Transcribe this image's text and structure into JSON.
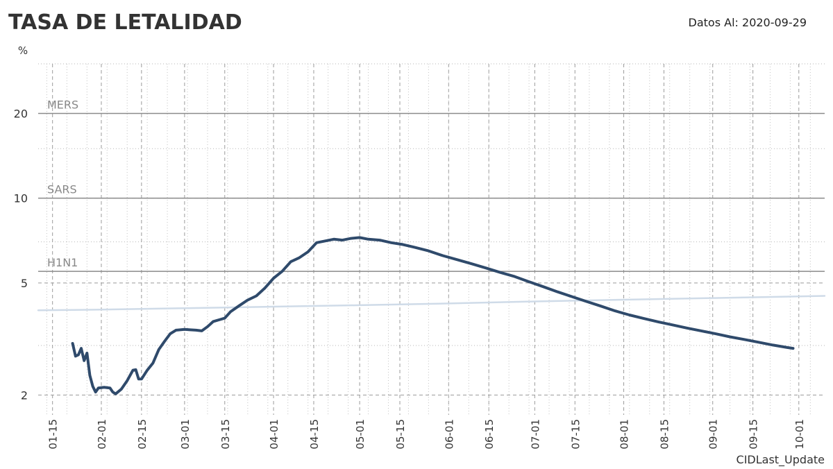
{
  "title": "TASA DE LETALIDAD",
  "update_label": "Datos Al: 2020-09-29",
  "y_unit": "%",
  "footer": "CIDLast_Update",
  "colors": {
    "main_series": "#2f4a6b",
    "global_series": "#cfdbe8",
    "reference_line": "#8a8a8a"
  },
  "chart_data": {
    "type": "line",
    "y_scale": "log",
    "ylim": [
      1.8,
      30
    ],
    "yticks": [
      2,
      5,
      10,
      20
    ],
    "x_range": [
      "2020-01-10",
      "2020-10-10"
    ],
    "xtick_labels": [
      "01-15",
      "02-01",
      "02-15",
      "03-01",
      "03-15",
      "04-01",
      "04-15",
      "05-01",
      "05-15",
      "06-01",
      "06-15",
      "07-01",
      "07-15",
      "08-01",
      "08-15",
      "09-01",
      "09-15",
      "10-01"
    ],
    "xtick_dates": [
      "2020-01-15",
      "2020-02-01",
      "2020-02-15",
      "2020-03-01",
      "2020-03-15",
      "2020-04-01",
      "2020-04-15",
      "2020-05-01",
      "2020-05-15",
      "2020-06-01",
      "2020-06-15",
      "2020-07-01",
      "2020-07-15",
      "2020-08-01",
      "2020-08-15",
      "2020-09-01",
      "2020-09-15",
      "2020-10-01"
    ],
    "grid": true,
    "reference_lines": [
      {
        "label": "MERS",
        "value": 20
      },
      {
        "label": "SARS",
        "value": 10
      },
      {
        "label": "H1N1",
        "value": 5.5
      }
    ],
    "series": [
      {
        "color": "#2f4a6b",
        "points": [
          [
            "2020-01-22",
            3.05
          ],
          [
            "2020-01-23",
            2.75
          ],
          [
            "2020-01-24",
            2.78
          ],
          [
            "2020-01-25",
            2.93
          ],
          [
            "2020-01-26",
            2.65
          ],
          [
            "2020-01-27",
            2.82
          ],
          [
            "2020-01-28",
            2.35
          ],
          [
            "2020-01-29",
            2.15
          ],
          [
            "2020-01-30",
            2.05
          ],
          [
            "2020-01-31",
            2.12
          ],
          [
            "2020-02-02",
            2.13
          ],
          [
            "2020-02-04",
            2.12
          ],
          [
            "2020-02-05",
            2.05
          ],
          [
            "2020-02-06",
            2.02
          ],
          [
            "2020-02-08",
            2.1
          ],
          [
            "2020-02-10",
            2.25
          ],
          [
            "2020-02-12",
            2.45
          ],
          [
            "2020-02-13",
            2.46
          ],
          [
            "2020-02-14",
            2.28
          ],
          [
            "2020-02-15",
            2.28
          ],
          [
            "2020-02-17",
            2.45
          ],
          [
            "2020-02-19",
            2.6
          ],
          [
            "2020-02-21",
            2.9
          ],
          [
            "2020-02-23",
            3.1
          ],
          [
            "2020-02-25",
            3.3
          ],
          [
            "2020-02-27",
            3.4
          ],
          [
            "2020-03-01",
            3.42
          ],
          [
            "2020-03-03",
            3.41
          ],
          [
            "2020-03-05",
            3.4
          ],
          [
            "2020-03-07",
            3.38
          ],
          [
            "2020-03-09",
            3.5
          ],
          [
            "2020-03-11",
            3.65
          ],
          [
            "2020-03-13",
            3.7
          ],
          [
            "2020-03-15",
            3.75
          ],
          [
            "2020-03-17",
            3.95
          ],
          [
            "2020-03-20",
            4.15
          ],
          [
            "2020-03-23",
            4.35
          ],
          [
            "2020-03-26",
            4.5
          ],
          [
            "2020-03-29",
            4.8
          ],
          [
            "2020-04-01",
            5.2
          ],
          [
            "2020-04-04",
            5.5
          ],
          [
            "2020-04-07",
            5.95
          ],
          [
            "2020-04-10",
            6.15
          ],
          [
            "2020-04-13",
            6.45
          ],
          [
            "2020-04-16",
            6.95
          ],
          [
            "2020-04-19",
            7.05
          ],
          [
            "2020-04-22",
            7.15
          ],
          [
            "2020-04-25",
            7.1
          ],
          [
            "2020-04-28",
            7.2
          ],
          [
            "2020-05-01",
            7.25
          ],
          [
            "2020-05-04",
            7.15
          ],
          [
            "2020-05-08",
            7.1
          ],
          [
            "2020-05-12",
            6.95
          ],
          [
            "2020-05-16",
            6.85
          ],
          [
            "2020-05-20",
            6.7
          ],
          [
            "2020-05-25",
            6.5
          ],
          [
            "2020-05-30",
            6.25
          ],
          [
            "2020-06-04",
            6.05
          ],
          [
            "2020-06-09",
            5.85
          ],
          [
            "2020-06-14",
            5.65
          ],
          [
            "2020-06-19",
            5.45
          ],
          [
            "2020-06-24",
            5.27
          ],
          [
            "2020-06-29",
            5.05
          ],
          [
            "2020-07-04",
            4.85
          ],
          [
            "2020-07-09",
            4.65
          ],
          [
            "2020-07-14",
            4.47
          ],
          [
            "2020-07-19",
            4.3
          ],
          [
            "2020-07-24",
            4.14
          ],
          [
            "2020-07-29",
            3.98
          ],
          [
            "2020-08-03",
            3.85
          ],
          [
            "2020-08-08",
            3.74
          ],
          [
            "2020-08-13",
            3.64
          ],
          [
            "2020-08-18",
            3.55
          ],
          [
            "2020-08-23",
            3.46
          ],
          [
            "2020-08-28",
            3.38
          ],
          [
            "2020-09-02",
            3.3
          ],
          [
            "2020-09-07",
            3.22
          ],
          [
            "2020-09-12",
            3.15
          ],
          [
            "2020-09-17",
            3.08
          ],
          [
            "2020-09-22",
            3.01
          ],
          [
            "2020-09-27",
            2.95
          ],
          [
            "2020-09-29",
            2.93
          ]
        ]
      },
      {
        "color": "#cfdbe8",
        "points": [
          [
            "2020-01-10",
            4.0
          ],
          [
            "2020-02-01",
            4.02
          ],
          [
            "2020-03-01",
            4.07
          ],
          [
            "2020-04-01",
            4.12
          ],
          [
            "2020-05-01",
            4.17
          ],
          [
            "2020-06-01",
            4.23
          ],
          [
            "2020-07-01",
            4.3
          ],
          [
            "2020-08-01",
            4.36
          ],
          [
            "2020-09-01",
            4.42
          ],
          [
            "2020-10-10",
            4.5
          ]
        ]
      }
    ]
  }
}
